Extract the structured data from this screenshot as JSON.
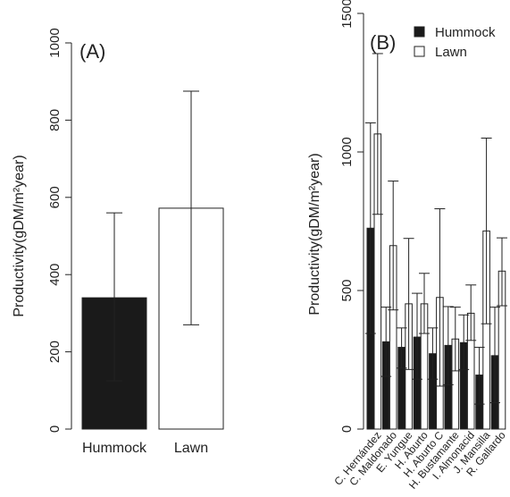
{
  "chart_data": [
    {
      "type": "bar",
      "panel_label": "(A)",
      "ylabel": "Productivity(gDM/m²year)",
      "ylim": [
        0,
        1000
      ],
      "yticks": [
        0,
        200,
        400,
        600,
        800,
        1000
      ],
      "categories": [
        "Hummock",
        "Lawn"
      ],
      "values": [
        340,
        572
      ],
      "error_low": [
        125,
        270
      ],
      "error_high": [
        560,
        875
      ],
      "colors": [
        "#1a1a1a",
        "#ffffff"
      ],
      "grid": false
    },
    {
      "type": "bar",
      "panel_label": "(B)",
      "ylabel": "Productivity(gDM/m²year)",
      "ylim": [
        0,
        1500
      ],
      "yticks": [
        0,
        500,
        1000,
        1500
      ],
      "categories": [
        "C. Hernández",
        "C. Maldonado",
        "E. Yungue",
        "H. Aburto",
        "H. Aburto C",
        "H. Bustamante",
        "I. Almonacid",
        "J. Mansilla",
        "R. Gallardo"
      ],
      "series": [
        {
          "name": "Hummock",
          "color": "#1a1a1a",
          "values": [
            725,
            315,
            295,
            332,
            272,
            302,
            312,
            195,
            265
          ],
          "error_low": [
            345,
            190,
            220,
            180,
            180,
            160,
            215,
            90,
            95
          ],
          "error_high": [
            1105,
            440,
            365,
            490,
            365,
            442,
            412,
            295,
            440
          ]
        },
        {
          "name": "Lawn",
          "color": "#ffffff",
          "values": [
            1065,
            662,
            452,
            452,
            475,
            325,
            418,
            715,
            570
          ],
          "error_low": [
            775,
            430,
            215,
            345,
            155,
            210,
            320,
            380,
            445
          ],
          "error_high": [
            1355,
            895,
            688,
            562,
            795,
            440,
            520,
            1050,
            690
          ]
        }
      ],
      "legend": {
        "placement": "top-right",
        "entries": [
          "Hummock",
          "Lawn"
        ]
      },
      "grid": false
    }
  ]
}
